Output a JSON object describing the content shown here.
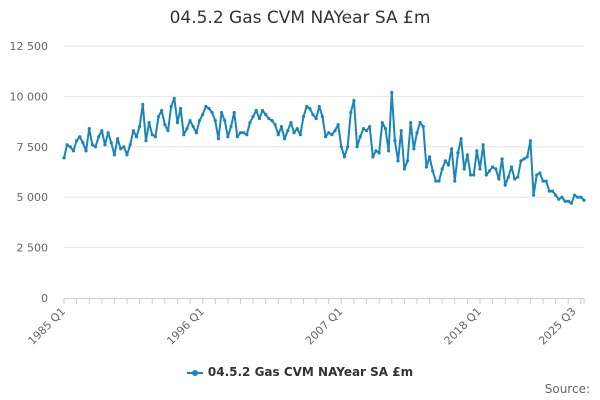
{
  "chart_data": {
    "type": "line",
    "title": "04.5.2 Gas CVM NAYear SA £m",
    "xlabel": "",
    "ylabel": "",
    "categories_first": "1985 Q1",
    "categories_last": "2025 Q3",
    "x_tick_labels": [
      "1985 Q1",
      "1996 Q1",
      "2007 Q1",
      "2018 Q1",
      "2025 Q3"
    ],
    "y_tick_labels": [
      "0",
      "2 500",
      "5 000",
      "7 500",
      "10 000",
      "12 500"
    ],
    "ylim": [
      0,
      12500
    ],
    "grid": "horizontal",
    "legend_position": "bottom",
    "series": [
      {
        "name": "04.5.2 Gas CVM NAYear SA £m",
        "color": "#1a85b8",
        "values": [
          6950,
          7600,
          7500,
          7300,
          7800,
          8000,
          7700,
          7300,
          8400,
          7600,
          7500,
          8000,
          8300,
          7600,
          8200,
          7700,
          7100,
          7900,
          7400,
          7500,
          7100,
          7600,
          8300,
          8000,
          8500,
          9600,
          7800,
          8700,
          8100,
          8000,
          9000,
          9300,
          8600,
          8300,
          9500,
          9900,
          8700,
          9400,
          8100,
          8400,
          8800,
          8500,
          8200,
          8800,
          9100,
          9500,
          9400,
          9200,
          8800,
          7900,
          9200,
          8800,
          8000,
          8500,
          9200,
          8000,
          8200,
          8200,
          8100,
          8700,
          9000,
          9300,
          8900,
          9300,
          9100,
          8900,
          8800,
          8600,
          8100,
          8500,
          7900,
          8300,
          8700,
          8200,
          8400,
          8100,
          9000,
          9500,
          9400,
          9100,
          8900,
          9500,
          9000,
          8000,
          8200,
          8100,
          8300,
          8600,
          7500,
          7000,
          7500,
          9200,
          9800,
          7500,
          8000,
          8400,
          8300,
          8500,
          7000,
          7300,
          7200,
          8700,
          8400,
          7300,
          10200,
          7800,
          6800,
          8300,
          6400,
          6800,
          8700,
          7400,
          8200,
          8700,
          8500,
          6500,
          7000,
          6300,
          5800,
          5800,
          6400,
          6800,
          6600,
          7400,
          5800,
          7200,
          7900,
          6400,
          7100,
          6100,
          6100,
          7300,
          6400,
          7600,
          6100,
          6300,
          6500,
          6400,
          5900,
          6900,
          5600,
          6000,
          6500,
          5900,
          6000,
          6800,
          6900,
          7000,
          7800,
          5100,
          6100,
          6200,
          5800,
          5800,
          5300,
          5300,
          5100,
          4900,
          5000,
          4800,
          4800,
          4700,
          5100,
          5000,
          5000,
          4850
        ]
      }
    ]
  },
  "credits": "Source:"
}
